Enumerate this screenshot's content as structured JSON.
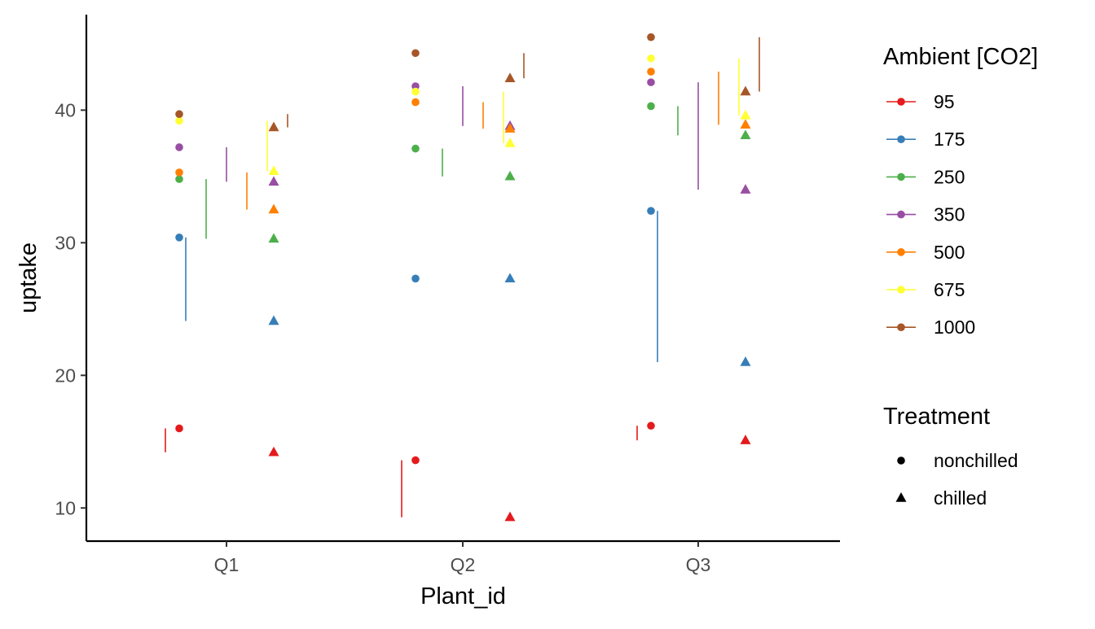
{
  "chart_data": {
    "type": "scatter",
    "xlabel": "Plant_id",
    "ylabel": "uptake",
    "categories": [
      "Q1",
      "Q2",
      "Q3"
    ],
    "yticks": [
      10,
      20,
      30,
      40
    ],
    "ylim": [
      7.5,
      47.2
    ],
    "grid": false,
    "legend_position": "right",
    "colors": {
      "95": "#E41A1C",
      "175": "#377EB8",
      "250": "#4DAF4A",
      "350": "#984EA3",
      "500": "#FF7F00",
      "675": "#FFFF33",
      "1000": "#A65628"
    },
    "legends": [
      {
        "title": "Ambient [CO2]",
        "kind": "color",
        "entries": [
          "95",
          "175",
          "250",
          "350",
          "500",
          "675",
          "1000"
        ]
      },
      {
        "title": "Treatment",
        "kind": "shape",
        "entries": [
          {
            "label": "nonchilled",
            "shape": "circle"
          },
          {
            "label": "chilled",
            "shape": "triangle"
          }
        ]
      }
    ],
    "points": {
      "Q1": {
        "nonchilled": {
          "95": 16.0,
          "175": 30.4,
          "250": 34.8,
          "350": 37.2,
          "500": 35.3,
          "675": 39.2,
          "1000": 39.7
        },
        "chilled": {
          "95": 14.2,
          "175": 24.1,
          "250": 30.3,
          "350": 34.6,
          "500": 32.5,
          "675": 35.4,
          "1000": 38.7
        }
      },
      "Q2": {
        "nonchilled": {
          "95": 13.6,
          "175": 27.3,
          "250": 37.1,
          "350": 41.8,
          "500": 40.6,
          "675": 41.4,
          "1000": 44.3
        },
        "chilled": {
          "95": 9.3,
          "175": 27.3,
          "250": 35.0,
          "350": 38.8,
          "500": 38.6,
          "675": 37.5,
          "1000": 42.4
        }
      },
      "Q3": {
        "nonchilled": {
          "95": 16.2,
          "175": 32.4,
          "250": 40.3,
          "350": 42.1,
          "500": 42.9,
          "675": 43.9,
          "1000": 45.5
        },
        "chilled": {
          "95": 15.1,
          "175": 21.0,
          "250": 38.1,
          "350": 34.0,
          "500": 38.9,
          "675": 39.6,
          "1000": 41.4
        }
      }
    },
    "ranges": {
      "Q1": {
        "95": [
          14.2,
          16.0
        ],
        "175": [
          24.1,
          30.4
        ],
        "250": [
          30.3,
          34.8
        ],
        "350": [
          34.6,
          37.2
        ],
        "500": [
          32.5,
          35.3
        ],
        "675": [
          35.4,
          39.2
        ],
        "1000": [
          38.7,
          39.7
        ]
      },
      "Q2": {
        "95": [
          9.3,
          13.6
        ],
        "175": [
          27.3,
          27.3
        ],
        "250": [
          35.0,
          37.1
        ],
        "350": [
          38.8,
          41.8
        ],
        "500": [
          38.6,
          40.6
        ],
        "675": [
          37.5,
          41.4
        ],
        "1000": [
          42.4,
          44.3
        ]
      },
      "Q3": {
        "95": [
          15.1,
          16.2
        ],
        "175": [
          21.0,
          32.4
        ],
        "250": [
          38.1,
          40.3
        ],
        "350": [
          34.0,
          42.1
        ],
        "500": [
          38.9,
          42.9
        ],
        "675": [
          39.6,
          43.9
        ],
        "1000": [
          41.4,
          45.5
        ]
      }
    }
  }
}
